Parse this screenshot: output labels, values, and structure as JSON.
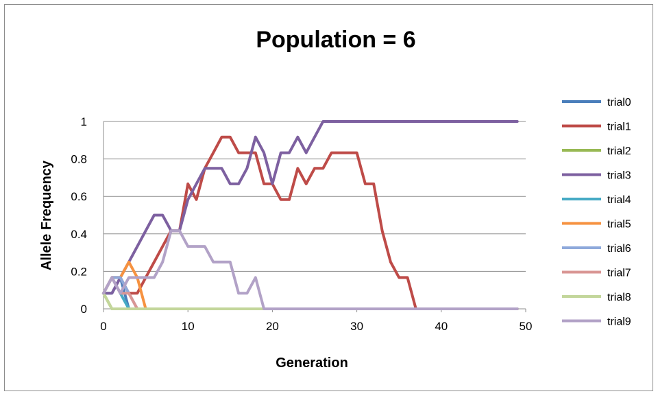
{
  "chart_data": {
    "type": "line",
    "title": "Population = 6",
    "xlabel": "Generation",
    "ylabel": "Allele Frequency",
    "xlim": [
      0,
      50
    ],
    "ylim": [
      0,
      1
    ],
    "xticks": [
      "0",
      "10",
      "20",
      "30",
      "40",
      "50"
    ],
    "yticks": [
      "0",
      "0.2",
      "0.4",
      "0.6",
      "0.8",
      "1"
    ],
    "grid": "horizontal",
    "legend": "right",
    "series": [
      {
        "name": "trial0",
        "color": "#4a7ebb",
        "points": [
          [
            0,
            0.083
          ],
          [
            1,
            0.083
          ],
          [
            2,
            0.167
          ],
          [
            3,
            0
          ],
          [
            49,
            0
          ]
        ]
      },
      {
        "name": "trial1",
        "color": "#be4b48",
        "points": [
          [
            0,
            0.083
          ],
          [
            1,
            0.167
          ],
          [
            2,
            0.167
          ],
          [
            3,
            0.083
          ],
          [
            4,
            0.083
          ],
          [
            5,
            0.167
          ],
          [
            6,
            0.25
          ],
          [
            7,
            0.333
          ],
          [
            8,
            0.417
          ],
          [
            9,
            0.417
          ],
          [
            10,
            0.667
          ],
          [
            11,
            0.583
          ],
          [
            12,
            0.75
          ],
          [
            13,
            0.833
          ],
          [
            14,
            0.917
          ],
          [
            15,
            0.917
          ],
          [
            16,
            0.833
          ],
          [
            17,
            0.833
          ],
          [
            18,
            0.833
          ],
          [
            19,
            0.667
          ],
          [
            20,
            0.667
          ],
          [
            21,
            0.583
          ],
          [
            22,
            0.583
          ],
          [
            23,
            0.75
          ],
          [
            24,
            0.667
          ],
          [
            25,
            0.75
          ],
          [
            26,
            0.75
          ],
          [
            27,
            0.833
          ],
          [
            28,
            0.833
          ],
          [
            29,
            0.833
          ],
          [
            30,
            0.833
          ],
          [
            31,
            0.667
          ],
          [
            32,
            0.667
          ],
          [
            33,
            0.417
          ],
          [
            34,
            0.25
          ],
          [
            35,
            0.167
          ],
          [
            36,
            0.167
          ],
          [
            37,
            0
          ],
          [
            49,
            0
          ]
        ]
      },
      {
        "name": "trial2",
        "color": "#98b954",
        "points": [
          [
            0,
            0.083
          ],
          [
            1,
            0
          ],
          [
            49,
            0
          ]
        ]
      },
      {
        "name": "trial3",
        "color": "#7d60a0",
        "points": [
          [
            0,
            0.083
          ],
          [
            1,
            0.083
          ],
          [
            2,
            0.167
          ],
          [
            3,
            0.25
          ],
          [
            4,
            0.333
          ],
          [
            5,
            0.417
          ],
          [
            6,
            0.5
          ],
          [
            7,
            0.5
          ],
          [
            8,
            0.417
          ],
          [
            9,
            0.417
          ],
          [
            10,
            0.583
          ],
          [
            11,
            0.667
          ],
          [
            12,
            0.75
          ],
          [
            13,
            0.75
          ],
          [
            14,
            0.75
          ],
          [
            15,
            0.667
          ],
          [
            16,
            0.667
          ],
          [
            17,
            0.75
          ],
          [
            18,
            0.917
          ],
          [
            19,
            0.833
          ],
          [
            20,
            0.667
          ],
          [
            21,
            0.833
          ],
          [
            22,
            0.833
          ],
          [
            23,
            0.917
          ],
          [
            24,
            0.833
          ],
          [
            25,
            0.917
          ],
          [
            26,
            1
          ],
          [
            49,
            1
          ]
        ]
      },
      {
        "name": "trial4",
        "color": "#46aac5",
        "points": [
          [
            0,
            0.083
          ],
          [
            1,
            0.167
          ],
          [
            2,
            0.083
          ],
          [
            3,
            0
          ],
          [
            49,
            0
          ]
        ]
      },
      {
        "name": "trial5",
        "color": "#f69240",
        "points": [
          [
            0,
            0.083
          ],
          [
            1,
            0.167
          ],
          [
            2,
            0.167
          ],
          [
            3,
            0.25
          ],
          [
            4,
            0.167
          ],
          [
            5,
            0
          ],
          [
            49,
            0
          ]
        ]
      },
      {
        "name": "trial6",
        "color": "#8ea9db",
        "points": [
          [
            0,
            0.083
          ],
          [
            1,
            0.167
          ],
          [
            2,
            0.167
          ],
          [
            3,
            0.083
          ],
          [
            4,
            0
          ],
          [
            49,
            0
          ]
        ]
      },
      {
        "name": "trial7",
        "color": "#d99694",
        "points": [
          [
            0,
            0.083
          ],
          [
            1,
            0.167
          ],
          [
            2,
            0.083
          ],
          [
            3,
            0.083
          ],
          [
            4,
            0
          ],
          [
            49,
            0
          ]
        ]
      },
      {
        "name": "trial8",
        "color": "#c3d69b",
        "points": [
          [
            0,
            0.083
          ],
          [
            1,
            0
          ],
          [
            49,
            0
          ]
        ]
      },
      {
        "name": "trial9",
        "color": "#b2a2c7",
        "points": [
          [
            0,
            0.083
          ],
          [
            1,
            0.167
          ],
          [
            2,
            0.083
          ],
          [
            3,
            0.167
          ],
          [
            4,
            0.167
          ],
          [
            5,
            0.167
          ],
          [
            6,
            0.167
          ],
          [
            7,
            0.25
          ],
          [
            8,
            0.417
          ],
          [
            9,
            0.417
          ],
          [
            10,
            0.333
          ],
          [
            11,
            0.333
          ],
          [
            12,
            0.333
          ],
          [
            13,
            0.25
          ],
          [
            14,
            0.25
          ],
          [
            15,
            0.25
          ],
          [
            16,
            0.083
          ],
          [
            17,
            0.083
          ],
          [
            18,
            0.167
          ],
          [
            19,
            0
          ],
          [
            49,
            0
          ]
        ]
      }
    ]
  }
}
